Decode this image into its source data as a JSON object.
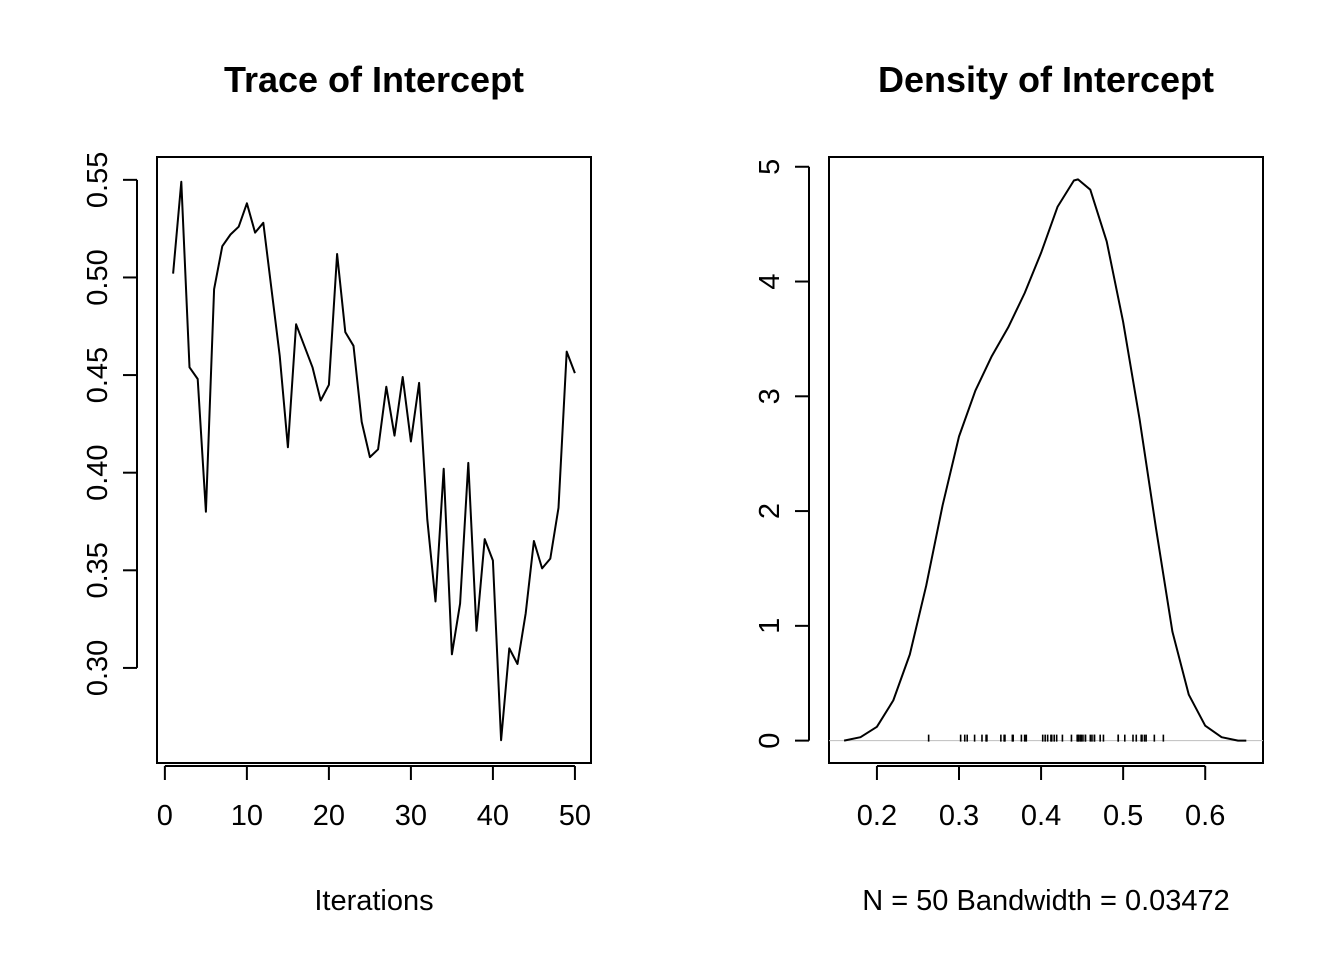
{
  "chart_data": [
    {
      "type": "line",
      "title": "Trace of Intercept",
      "xlabel": "Iterations",
      "ylabel": "",
      "xlim": [
        -0.96,
        51.96
      ],
      "ylim": [
        0.2513,
        0.5617
      ],
      "xticks": [
        0,
        10,
        20,
        30,
        40,
        50
      ],
      "yticks": [
        0.3,
        0.35,
        0.4,
        0.45,
        0.5,
        0.55
      ],
      "xtick_labels": [
        "0",
        "10",
        "20",
        "30",
        "40",
        "50"
      ],
      "ytick_labels": [
        "0.30",
        "0.35",
        "0.40",
        "0.45",
        "0.50",
        "0.55"
      ],
      "grid": false,
      "series": [
        {
          "x": [
            1,
            2,
            3,
            4,
            5,
            6,
            7,
            8,
            9,
            10,
            11,
            12,
            13,
            14,
            15,
            16,
            17,
            18,
            19,
            20,
            21,
            22,
            23,
            24,
            25,
            26,
            27,
            28,
            29,
            30,
            31,
            32,
            33,
            34,
            35,
            36,
            37,
            38,
            39,
            40,
            41,
            42,
            43,
            44,
            45,
            46,
            47,
            48,
            49,
            50
          ],
          "values": [
            0.502,
            0.549,
            0.454,
            0.448,
            0.38,
            0.494,
            0.516,
            0.522,
            0.526,
            0.538,
            0.523,
            0.528,
            0.494,
            0.46,
            0.413,
            0.476,
            0.465,
            0.454,
            0.437,
            0.445,
            0.512,
            0.472,
            0.465,
            0.426,
            0.408,
            0.412,
            0.444,
            0.419,
            0.449,
            0.416,
            0.446,
            0.376,
            0.334,
            0.402,
            0.307,
            0.333,
            0.405,
            0.319,
            0.366,
            0.355,
            0.263,
            0.31,
            0.302,
            0.328,
            0.365,
            0.351,
            0.356,
            0.382,
            0.462,
            0.451
          ]
        }
      ]
    },
    {
      "type": "line",
      "title": "Density of Intercept",
      "xlabel": "N = 50   Bandwidth = 0.03472",
      "ylabel": "",
      "xlim": [
        0.1416,
        0.6704
      ],
      "ylim": [
        -0.195,
        5.085
      ],
      "xticks": [
        0.2,
        0.3,
        0.4,
        0.5,
        0.6
      ],
      "yticks": [
        0,
        1,
        2,
        3,
        4,
        5
      ],
      "xtick_labels": [
        "0.2",
        "0.3",
        "0.4",
        "0.5",
        "0.6"
      ],
      "ytick_labels": [
        "0",
        "1",
        "2",
        "3",
        "4",
        "5"
      ],
      "grid": false,
      "baseline_color": "#bebebe",
      "series": [
        {
          "x": [
            0.16,
            0.18,
            0.2,
            0.22,
            0.24,
            0.26,
            0.28,
            0.3,
            0.32,
            0.34,
            0.36,
            0.38,
            0.4,
            0.42,
            0.44,
            0.445,
            0.46,
            0.48,
            0.5,
            0.52,
            0.54,
            0.56,
            0.58,
            0.6,
            0.62,
            0.64,
            0.65
          ],
          "values": [
            0.0,
            0.03,
            0.12,
            0.35,
            0.75,
            1.35,
            2.05,
            2.65,
            3.05,
            3.35,
            3.6,
            3.9,
            4.25,
            4.65,
            4.88,
            4.89,
            4.8,
            4.35,
            3.65,
            2.8,
            1.85,
            0.95,
            0.4,
            0.13,
            0.03,
            0.0,
            0.0
          ]
        }
      ],
      "rug": [
        0.263,
        0.302,
        0.307,
        0.31,
        0.319,
        0.328,
        0.333,
        0.334,
        0.351,
        0.355,
        0.356,
        0.365,
        0.366,
        0.376,
        0.38,
        0.382,
        0.402,
        0.405,
        0.408,
        0.412,
        0.413,
        0.416,
        0.419,
        0.426,
        0.437,
        0.444,
        0.445,
        0.446,
        0.448,
        0.449,
        0.451,
        0.454,
        0.454,
        0.46,
        0.462,
        0.465,
        0.465,
        0.472,
        0.476,
        0.494,
        0.494,
        0.502,
        0.512,
        0.516,
        0.522,
        0.523,
        0.526,
        0.528,
        0.538,
        0.549
      ]
    }
  ]
}
